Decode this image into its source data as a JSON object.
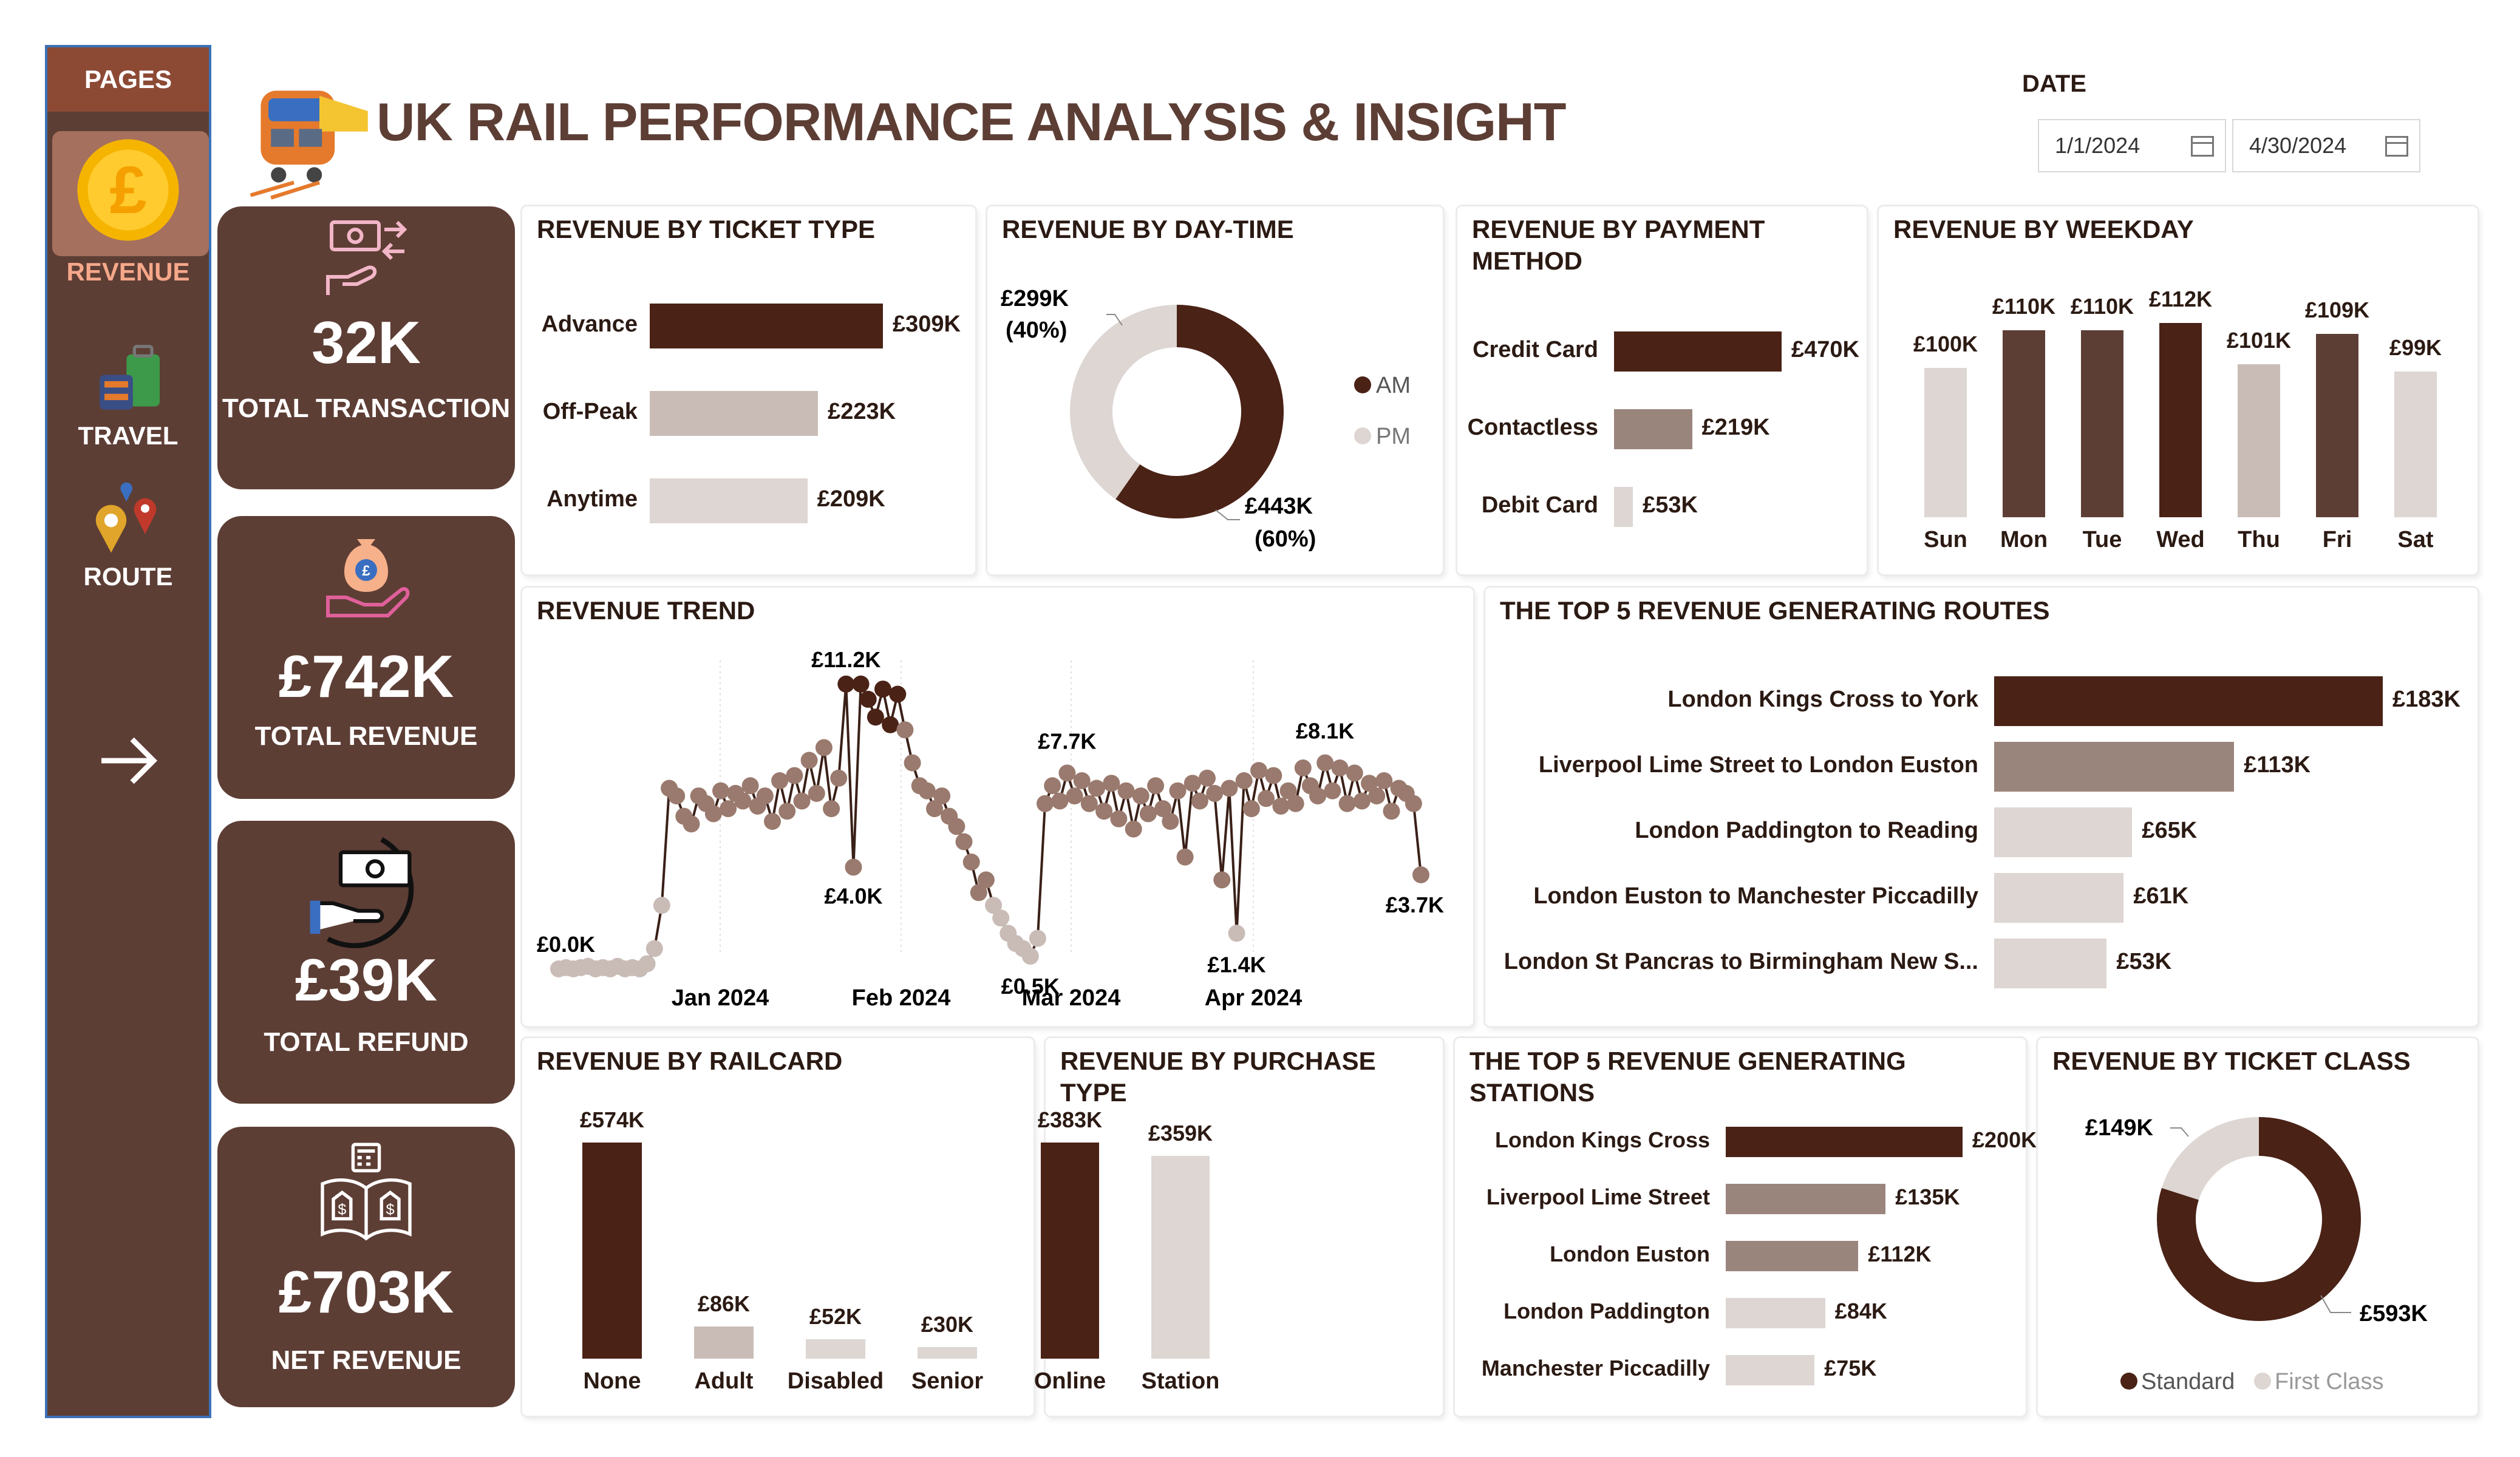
{
  "sidebar": {
    "title": "PAGES",
    "items": [
      {
        "label": "REVENUE",
        "icon": "pound-coin-icon",
        "active": true
      },
      {
        "label": "TRAVEL",
        "icon": "luggage-icon"
      },
      {
        "label": "ROUTE",
        "icon": "map-pins-icon"
      }
    ],
    "next_icon": "arrow-right-icon"
  },
  "header": {
    "title": "UK RAIL PERFORMANCE ANALYSIS & INSIGHT",
    "logo_icon": "train-icon",
    "date_label": "DATE",
    "date_start": "1/1/2024",
    "date_end": "4/30/2024"
  },
  "kpis": [
    {
      "value": "32K",
      "label": "TOTAL TRANSACTION",
      "icon": "money-transfer-icon"
    },
    {
      "value": "£742K",
      "label": "TOTAL REVENUE",
      "icon": "money-bag-hand-icon"
    },
    {
      "value": "£39K",
      "label": "TOTAL REFUND",
      "icon": "cash-refund-icon"
    },
    {
      "value": "£703K",
      "label": "NET REVENUE",
      "icon": "calculator-book-icon"
    }
  ],
  "colors": {
    "dark": "#4a2216",
    "brown": "#5d3e35",
    "mid": "#9a857d",
    "light": "#c9bcb6",
    "lighter": "#ddd6d2",
    "accent": "#8c4a35"
  },
  "panels": {
    "ticket_type": {
      "title": "REVENUE BY TICKET TYPE",
      "items": [
        {
          "label": "Advance",
          "value": 309,
          "text": "£309K"
        },
        {
          "label": "Off-Peak",
          "value": 223,
          "text": "£223K"
        },
        {
          "label": "Anytime",
          "value": 209,
          "text": "£209K"
        }
      ]
    },
    "day_time": {
      "title": "REVENUE BY DAY-TIME",
      "slices": [
        {
          "name": "AM",
          "value": 443,
          "label": "£443K",
          "pct": "(60%)"
        },
        {
          "name": "PM",
          "value": 299,
          "label": "£299K",
          "pct": "(40%)"
        }
      ]
    },
    "payment": {
      "title": "REVENUE BY PAYMENT METHOD",
      "items": [
        {
          "label": "Credit Card",
          "value": 470,
          "text": "£470K"
        },
        {
          "label": "Contactless",
          "value": 219,
          "text": "£219K"
        },
        {
          "label": "Debit Card",
          "value": 53,
          "text": "£53K"
        }
      ]
    },
    "weekday": {
      "title": "REVENUE BY WEEKDAY",
      "items": [
        {
          "label": "Sun",
          "value": 100,
          "text": "£100K"
        },
        {
          "label": "Mon",
          "value": 110,
          "text": "£110K"
        },
        {
          "label": "Tue",
          "value": 110,
          "text": "£110K"
        },
        {
          "label": "Wed",
          "value": 112,
          "text": "£112K"
        },
        {
          "label": "Thu",
          "value": 101,
          "text": "£101K"
        },
        {
          "label": "Fri",
          "value": 109,
          "text": "£109K"
        },
        {
          "label": "Sat",
          "value": 99,
          "text": "£99K"
        }
      ]
    },
    "trend": {
      "title": "REVENUE TREND",
      "x_ticks": [
        "Jan 2024",
        "Feb 2024",
        "Mar 2024",
        "Apr 2024"
      ],
      "annotations": [
        "£0.0K",
        "£11.2K",
        "£4.0K",
        "£7.7K",
        "£0.5K",
        "£1.4K",
        "£8.1K",
        "£3.7K"
      ]
    },
    "routes": {
      "title": "THE TOP 5 REVENUE GENERATING ROUTES",
      "items": [
        {
          "label": "London Kings Cross to York",
          "value": 183,
          "text": "£183K"
        },
        {
          "label": "Liverpool Lime Street to London Euston",
          "value": 113,
          "text": "£113K"
        },
        {
          "label": "London Paddington to Reading",
          "value": 65,
          "text": "£65K"
        },
        {
          "label": "London Euston to Manchester Piccadilly",
          "value": 61,
          "text": "£61K"
        },
        {
          "label": "London St Pancras to Birmingham New S...",
          "value": 53,
          "text": "£53K"
        }
      ]
    },
    "railcard": {
      "title": "REVENUE BY RAILCARD",
      "items": [
        {
          "label": "None",
          "value": 574,
          "text": "£574K"
        },
        {
          "label": "Adult",
          "value": 86,
          "text": "£86K"
        },
        {
          "label": "Disabled",
          "value": 52,
          "text": "£52K"
        },
        {
          "label": "Senior",
          "value": 30,
          "text": "£30K"
        }
      ]
    },
    "purchase": {
      "title": "REVENUE BY PURCHASE TYPE",
      "items": [
        {
          "label": "Online",
          "value": 383,
          "text": "£383K"
        },
        {
          "label": "Station",
          "value": 359,
          "text": "£359K"
        }
      ]
    },
    "stations": {
      "title": "THE TOP 5 REVENUE GENERATING STATIONS",
      "items": [
        {
          "label": "London Kings Cross",
          "value": 200,
          "text": "£200K"
        },
        {
          "label": "Liverpool Lime Street",
          "value": 135,
          "text": "£135K"
        },
        {
          "label": "London Euston",
          "value": 112,
          "text": "£112K"
        },
        {
          "label": "London Paddington",
          "value": 84,
          "text": "£84K"
        },
        {
          "label": "Manchester Piccadilly",
          "value": 75,
          "text": "£75K"
        }
      ]
    },
    "ticket_class": {
      "title": "REVENUE BY TICKET CLASS",
      "slices": [
        {
          "name": "Standard",
          "value": 593,
          "label": "£593K"
        },
        {
          "name": "First Class",
          "value": 149,
          "label": "£149K"
        }
      ]
    }
  },
  "chart_data": [
    {
      "type": "bar",
      "title": "REVENUE BY TICKET TYPE",
      "categories": [
        "Advance",
        "Off-Peak",
        "Anytime"
      ],
      "values": [
        309,
        223,
        209
      ],
      "unit": "£K"
    },
    {
      "type": "pie",
      "title": "REVENUE BY DAY-TIME",
      "categories": [
        "AM",
        "PM"
      ],
      "values": [
        443,
        299
      ],
      "unit": "£K"
    },
    {
      "type": "bar",
      "title": "REVENUE BY PAYMENT METHOD",
      "categories": [
        "Credit Card",
        "Contactless",
        "Debit Card"
      ],
      "values": [
        470,
        219,
        53
      ],
      "unit": "£K"
    },
    {
      "type": "bar",
      "title": "REVENUE BY WEEKDAY",
      "categories": [
        "Sun",
        "Mon",
        "Tue",
        "Wed",
        "Thu",
        "Fri",
        "Sat"
      ],
      "values": [
        100,
        110,
        110,
        112,
        101,
        109,
        99
      ],
      "unit": "£K"
    },
    {
      "type": "line",
      "title": "REVENUE TREND",
      "x_ticks": [
        "Jan 2024",
        "Feb 2024",
        "Mar 2024",
        "Apr 2024"
      ],
      "unit": "£K",
      "values": [
        0.0,
        0.05,
        0.0,
        0.05,
        0.1,
        0.0,
        0.05,
        0.0,
        0.1,
        0.0,
        0.05,
        0.0,
        0.2,
        0.8,
        2.5,
        7.1,
        6.8,
        6.0,
        5.7,
        6.8,
        6.5,
        6.1,
        7.0,
        6.3,
        6.9,
        6.6,
        7.2,
        6.4,
        6.8,
        5.8,
        7.4,
        6.2,
        7.6,
        6.6,
        8.2,
        6.9,
        8.7,
        6.3,
        7.5,
        11.2,
        4.0,
        11.2,
        10.6,
        9.9,
        11.0,
        9.6,
        10.8,
        9.4,
        8.1,
        7.2,
        7.0,
        6.3,
        6.8,
        6.0,
        5.6,
        5.0,
        4.2,
        3.0,
        3.5,
        2.5,
        2.0,
        1.4,
        1.0,
        0.8,
        0.5,
        1.2,
        6.5,
        7.2,
        6.6,
        7.7,
        6.8,
        7.4,
        6.5,
        7.1,
        6.2,
        7.3,
        5.9,
        7.0,
        5.5,
        6.8,
        6.1,
        7.2,
        6.3,
        5.8,
        7.0,
        4.4,
        7.3,
        6.6,
        7.5,
        6.9,
        3.5,
        7.1,
        1.4,
        7.4,
        6.3,
        7.8,
        6.7,
        7.6,
        6.4,
        7.0,
        6.5,
        7.9,
        7.2,
        6.8,
        8.1,
        7.0,
        7.9,
        6.5,
        7.7,
        6.6,
        7.3,
        6.8,
        7.4,
        6.2,
        7.1,
        6.9,
        6.5,
        3.7
      ]
    },
    {
      "type": "bar",
      "title": "THE TOP 5 REVENUE GENERATING ROUTES",
      "categories": [
        "London Kings Cross to York",
        "Liverpool Lime Street to London Euston",
        "London Paddington to Reading",
        "London Euston to Manchester Piccadilly",
        "London St Pancras to Birmingham New S..."
      ],
      "values": [
        183,
        113,
        65,
        61,
        53
      ],
      "unit": "£K"
    },
    {
      "type": "bar",
      "title": "REVENUE BY RAILCARD",
      "categories": [
        "None",
        "Adult",
        "Disabled",
        "Senior"
      ],
      "values": [
        574,
        86,
        52,
        30
      ],
      "unit": "£K"
    },
    {
      "type": "bar",
      "title": "REVENUE BY PURCHASE TYPE",
      "categories": [
        "Online",
        "Station"
      ],
      "values": [
        383,
        359
      ],
      "unit": "£K"
    },
    {
      "type": "bar",
      "title": "THE TOP 5 REVENUE GENERATING STATIONS",
      "categories": [
        "London Kings Cross",
        "Liverpool Lime Street",
        "London Euston",
        "London Paddington",
        "Manchester Piccadilly"
      ],
      "values": [
        200,
        135,
        112,
        84,
        75
      ],
      "unit": "£K"
    },
    {
      "type": "pie",
      "title": "REVENUE BY TICKET CLASS",
      "categories": [
        "Standard",
        "First Class"
      ],
      "values": [
        593,
        149
      ],
      "unit": "£K"
    }
  ]
}
